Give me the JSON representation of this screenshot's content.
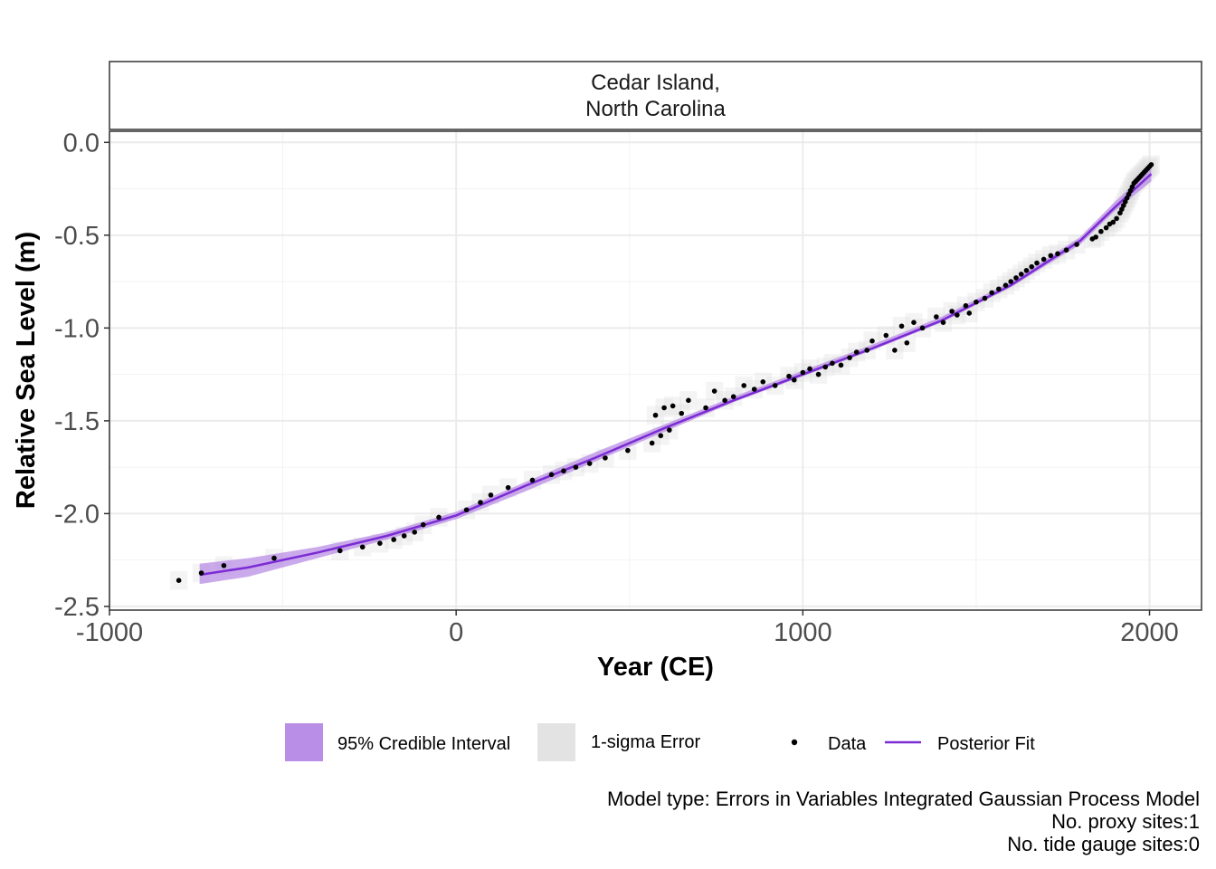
{
  "chart_data": {
    "type": "scatter",
    "facet_title": [
      "Cedar Island,",
      "North Carolina"
    ],
    "xlabel": "Year (CE)",
    "ylabel": "Relative Sea Level (m)",
    "xlim": [
      -1000,
      2150
    ],
    "ylim": [
      -2.52,
      0.06
    ],
    "x_ticks": [
      -1000,
      0,
      1000,
      2000
    ],
    "x_tick_labels": [
      "-1000",
      "0",
      "1000",
      "2000"
    ],
    "y_ticks": [
      0.0,
      -0.5,
      -1.0,
      -1.5,
      -2.0,
      -2.5
    ],
    "y_tick_labels": [
      "0.0",
      "-0.5",
      "-1.0",
      "-1.5",
      "-2.0",
      "-2.5"
    ],
    "grid": true,
    "colors": {
      "credible_interval": "#b98ee6",
      "sigma_error": "#dcdcdc",
      "data_point": "#000000",
      "posterior_fit": "#7b2cd4"
    },
    "series": [
      {
        "name": "Data",
        "x": [
          -800,
          -735,
          -670,
          -525,
          -335,
          -270,
          -220,
          -180,
          -150,
          -120,
          -95,
          -50,
          30,
          70,
          100,
          150,
          220,
          275,
          310,
          345,
          385,
          430,
          495,
          565,
          575,
          590,
          600,
          615,
          625,
          650,
          670,
          720,
          745,
          775,
          800,
          830,
          860,
          885,
          920,
          960,
          975,
          1000,
          1020,
          1045,
          1065,
          1085,
          1110,
          1135,
          1155,
          1185,
          1200,
          1240,
          1265,
          1285,
          1300,
          1320,
          1345,
          1385,
          1405,
          1430,
          1445,
          1470,
          1480,
          1500,
          1525,
          1545,
          1565,
          1585,
          1600,
          1615,
          1630,
          1645,
          1660,
          1675,
          1695,
          1715,
          1735,
          1760,
          1790,
          1835,
          1845,
          1860,
          1875,
          1885,
          1895,
          1905,
          1915,
          1920,
          1925,
          1930,
          1935,
          1940,
          1945,
          1950,
          1955,
          1960,
          1965,
          1970,
          1975,
          1980,
          1985,
          1990,
          1995,
          2000,
          2005
        ],
        "y": [
          -2.36,
          -2.32,
          -2.28,
          -2.24,
          -2.2,
          -2.18,
          -2.16,
          -2.14,
          -2.12,
          -2.1,
          -2.06,
          -2.02,
          -1.98,
          -1.94,
          -1.9,
          -1.86,
          -1.82,
          -1.79,
          -1.77,
          -1.75,
          -1.73,
          -1.7,
          -1.66,
          -1.62,
          -1.47,
          -1.58,
          -1.43,
          -1.55,
          -1.42,
          -1.46,
          -1.39,
          -1.43,
          -1.34,
          -1.39,
          -1.37,
          -1.31,
          -1.33,
          -1.29,
          -1.31,
          -1.26,
          -1.28,
          -1.24,
          -1.22,
          -1.25,
          -1.21,
          -1.19,
          -1.2,
          -1.16,
          -1.13,
          -1.12,
          -1.07,
          -1.04,
          -1.12,
          -0.99,
          -1.08,
          -0.97,
          -1.0,
          -0.94,
          -0.97,
          -0.91,
          -0.93,
          -0.88,
          -0.92,
          -0.86,
          -0.84,
          -0.81,
          -0.79,
          -0.77,
          -0.75,
          -0.73,
          -0.71,
          -0.69,
          -0.67,
          -0.65,
          -0.63,
          -0.61,
          -0.6,
          -0.58,
          -0.55,
          -0.52,
          -0.51,
          -0.48,
          -0.46,
          -0.44,
          -0.43,
          -0.41,
          -0.38,
          -0.36,
          -0.34,
          -0.32,
          -0.3,
          -0.28,
          -0.26,
          -0.24,
          -0.22,
          -0.21,
          -0.2,
          -0.19,
          -0.18,
          -0.17,
          -0.16,
          -0.15,
          -0.14,
          -0.13,
          -0.12
        ]
      },
      {
        "name": "Posterior Fit",
        "x": [
          -740,
          -600,
          -400,
          -200,
          0,
          200,
          400,
          600,
          800,
          1000,
          1200,
          1400,
          1600,
          1800,
          1900,
          2005
        ],
        "y": [
          -2.33,
          -2.29,
          -2.21,
          -2.12,
          -2.01,
          -1.85,
          -1.7,
          -1.54,
          -1.39,
          -1.25,
          -1.11,
          -0.96,
          -0.77,
          -0.53,
          -0.35,
          -0.17
        ]
      },
      {
        "name": "95% Credible Interval",
        "x": [
          -740,
          -600,
          -400,
          -200,
          0,
          200,
          400,
          600,
          800,
          1000,
          1200,
          1400,
          1600,
          1800,
          1900,
          2005
        ],
        "lower": [
          -2.38,
          -2.34,
          -2.24,
          -2.14,
          -2.03,
          -1.88,
          -1.72,
          -1.56,
          -1.4,
          -1.26,
          -1.12,
          -0.97,
          -0.78,
          -0.55,
          -0.37,
          -0.21
        ],
        "upper": [
          -2.27,
          -2.24,
          -2.18,
          -2.1,
          -1.99,
          -1.83,
          -1.67,
          -1.52,
          -1.37,
          -1.23,
          -1.09,
          -0.94,
          -0.75,
          -0.51,
          -0.32,
          -0.14
        ]
      }
    ],
    "legend": {
      "position": "bottom",
      "entries": [
        "95% Credible Interval",
        "1-sigma Error",
        "Data",
        "Posterior Fit"
      ]
    },
    "caption": [
      "Model type: Errors in Variables Integrated Gaussian Process Model",
      "No. proxy sites:1",
      "No. tide gauge sites:0"
    ]
  }
}
